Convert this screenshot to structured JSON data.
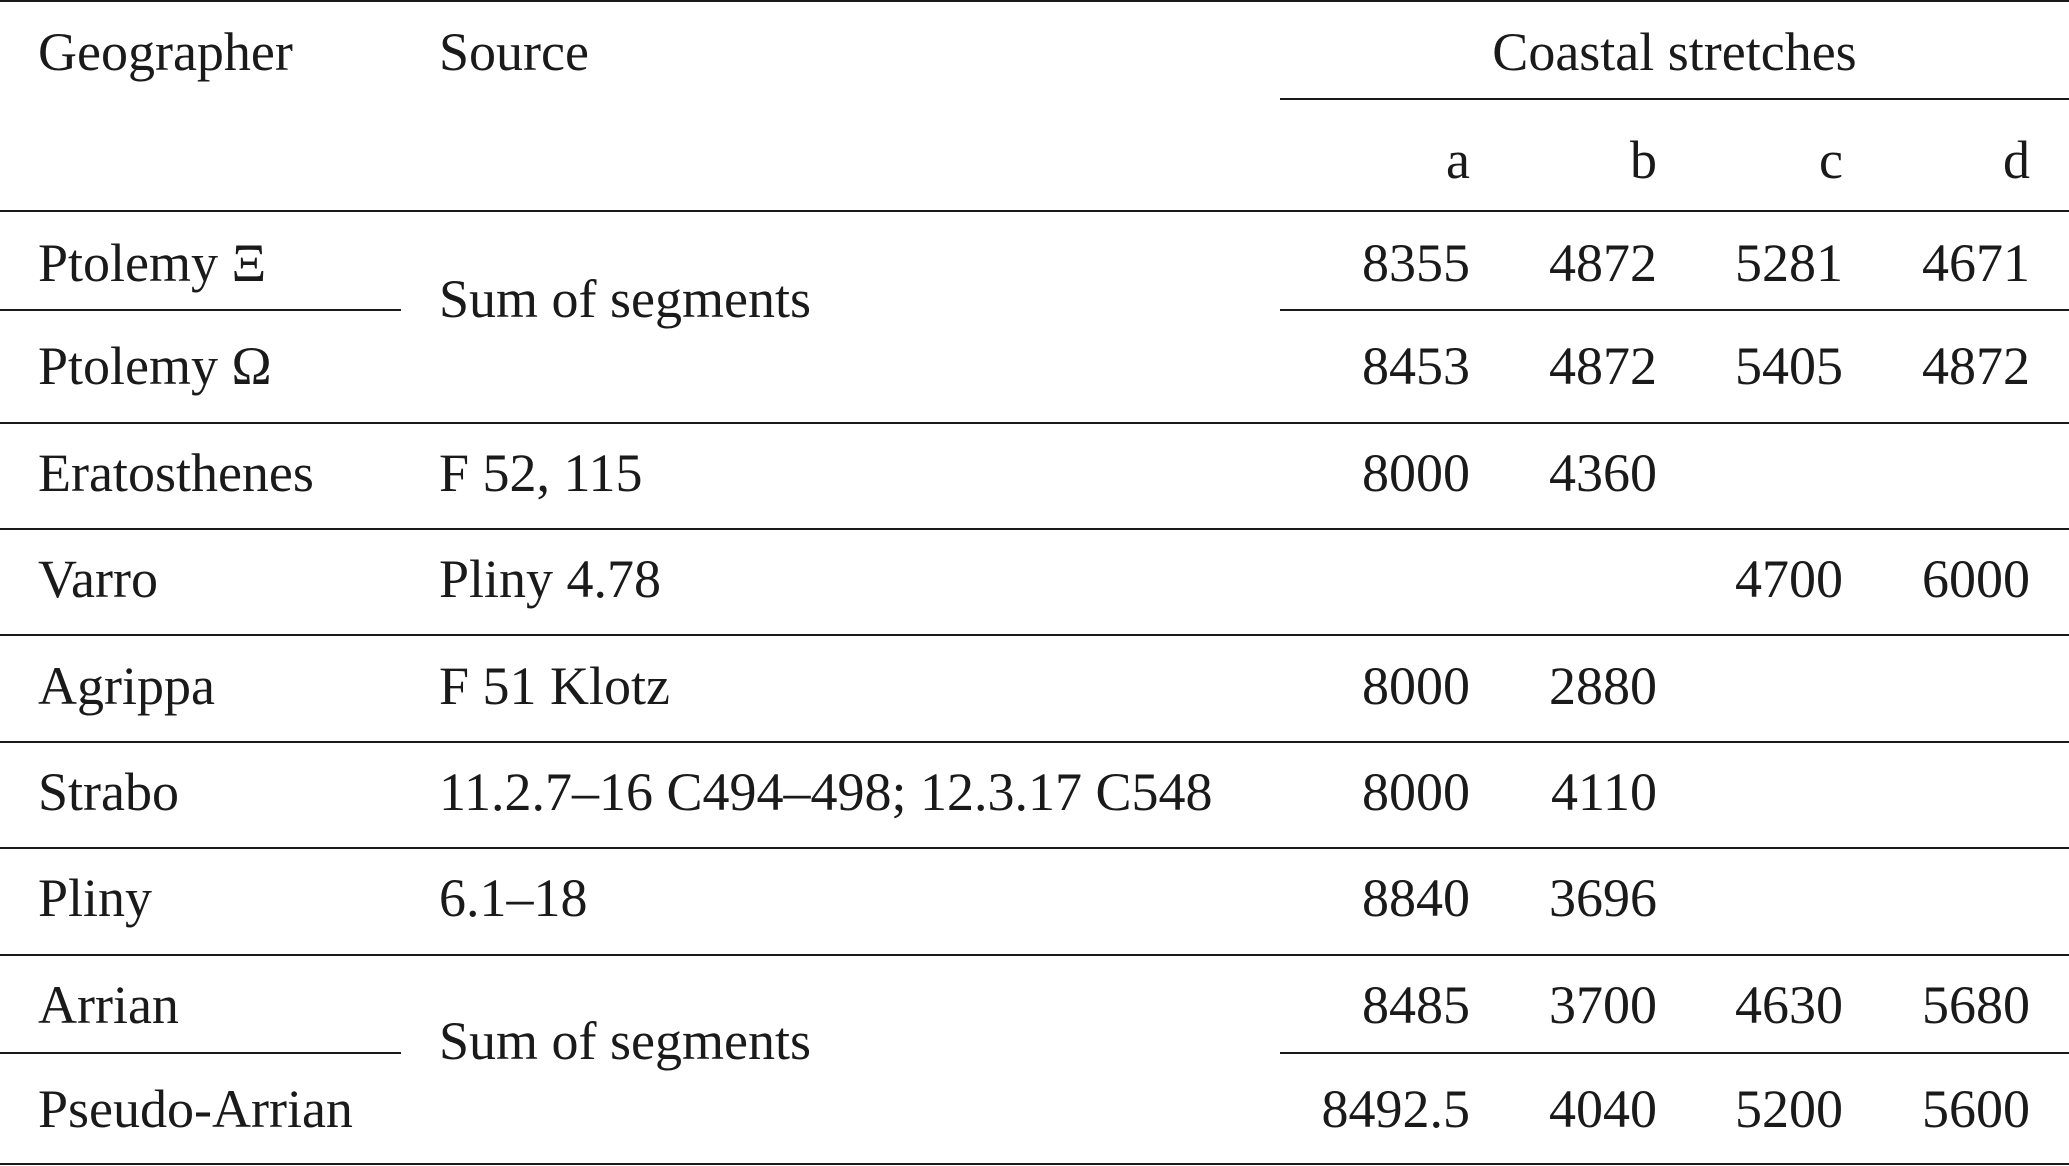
{
  "table": {
    "headers": {
      "geographer": "Geographer",
      "source": "Source",
      "group": "Coastal stretches",
      "columns": [
        "a",
        "b",
        "c",
        "d"
      ]
    },
    "rows": [
      {
        "geographer": "Ptolemy Ξ",
        "source": "Sum of segments",
        "values": [
          "8355",
          "4872",
          "5281",
          "4671"
        ]
      },
      {
        "geographer": "Ptolemy Ω",
        "source": "",
        "values": [
          "8453",
          "4872",
          "5405",
          "4872"
        ]
      },
      {
        "geographer": "Eratosthenes",
        "source": "F 52, 115",
        "values": [
          "8000",
          "4360",
          "",
          ""
        ]
      },
      {
        "geographer": "Varro",
        "source": "Pliny 4.78",
        "values": [
          "",
          "",
          "4700",
          "6000"
        ]
      },
      {
        "geographer": "Agrippa",
        "source": "F 51 Klotz",
        "values": [
          "8000",
          "2880",
          "",
          ""
        ]
      },
      {
        "geographer": "Strabo",
        "source": "11.2.7–16 C494–498; 12.3.17 C548",
        "values": [
          "8000",
          "4110",
          "",
          ""
        ]
      },
      {
        "geographer": "Pliny",
        "source": "6.1–18",
        "values": [
          "8840",
          "3696",
          "",
          ""
        ]
      },
      {
        "geographer": "Arrian",
        "source": "Sum of segments",
        "values": [
          "8485",
          "3700",
          "4630",
          "5680"
        ]
      },
      {
        "geographer": "Pseudo-Arrian",
        "source": "",
        "values": [
          "8492.5",
          "4040",
          "5200",
          "5600"
        ]
      }
    ]
  }
}
